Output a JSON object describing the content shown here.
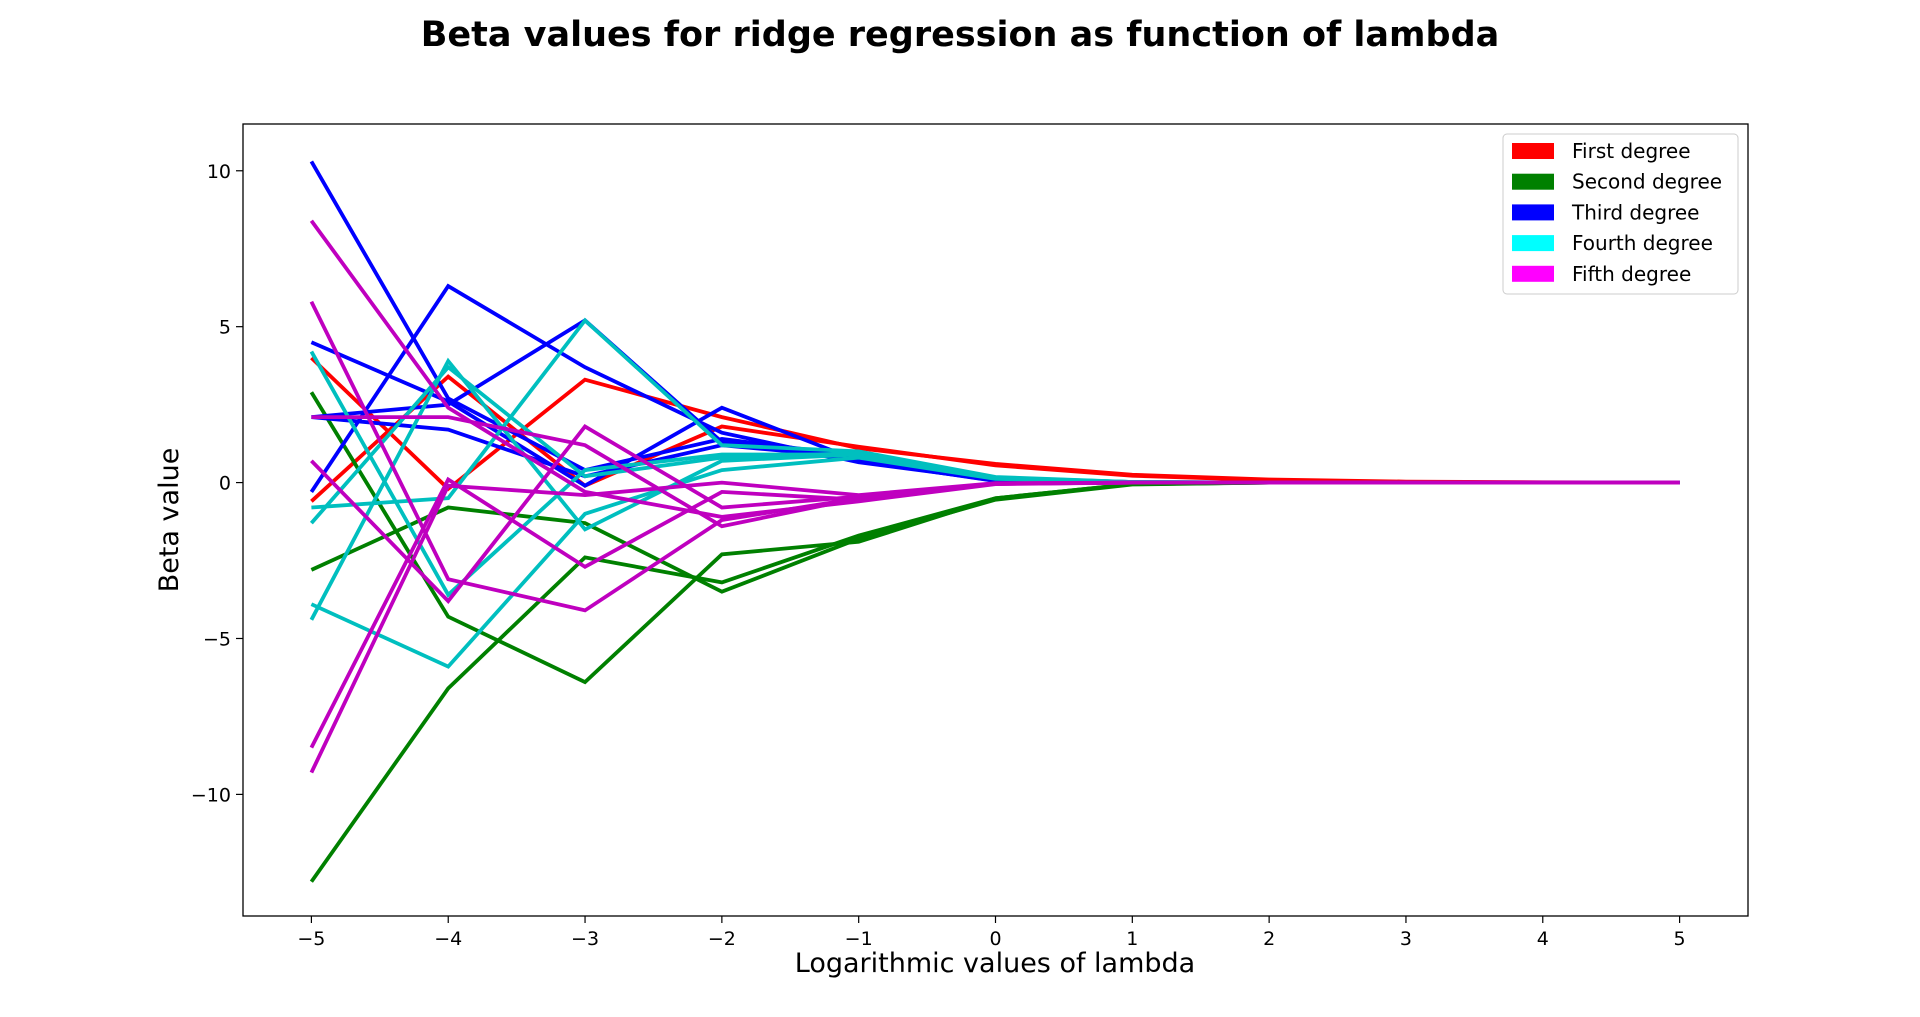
{
  "chart_data": {
    "type": "line",
    "title": "Beta values for ridge regression as function of lambda",
    "xlabel": "Logarithmic values of lambda",
    "ylabel": "Beta value",
    "x": [
      -5,
      -4,
      -3,
      -2,
      -1,
      0,
      1,
      2,
      3,
      4,
      5
    ],
    "xticks": [
      -5,
      -4,
      -3,
      -2,
      -1,
      0,
      1,
      2,
      3,
      4,
      5
    ],
    "xtick_labels": [
      "−5",
      "−4",
      "−3",
      "−2",
      "−1",
      "0",
      "1",
      "2",
      "3",
      "4",
      "5"
    ],
    "yticks": [
      10,
      5,
      0,
      -5,
      -10
    ],
    "ytick_labels": [
      "10",
      "5",
      "0",
      "−5",
      "−10"
    ],
    "xlim": [
      -5.5,
      5.5
    ],
    "ylim": [
      -13.9,
      11.5
    ],
    "grid": false,
    "legend_position": "top-right",
    "legend": [
      {
        "label": "First degree",
        "color": "#ff0000"
      },
      {
        "label": "Second degree",
        "color": "#008000"
      },
      {
        "label": "Third degree",
        "color": "#0000ff"
      },
      {
        "label": "Fourth degree",
        "color": "#00ffff"
      },
      {
        "label": "Fifth degree",
        "color": "#ff00ff"
      }
    ],
    "series": [
      {
        "group": "First degree",
        "color": "#ff0000",
        "values": [
          4.0,
          -0.2,
          3.3,
          2.1,
          1.1,
          0.6,
          0.25,
          0.1,
          0.03,
          0.01,
          0.0
        ]
      },
      {
        "group": "First degree",
        "color": "#ff0000",
        "values": [
          -0.6,
          3.4,
          -0.1,
          1.8,
          1.15,
          0.55,
          0.22,
          0.08,
          0.02,
          0.0,
          0.0
        ]
      },
      {
        "group": "Second degree",
        "color": "#008000",
        "values": [
          2.9,
          -4.3,
          -6.4,
          -2.3,
          -1.9,
          -0.5,
          -0.05,
          0.0,
          0.0,
          0.0,
          0.0
        ]
      },
      {
        "group": "Second degree",
        "color": "#008000",
        "values": [
          -2.8,
          -0.8,
          -1.3,
          -3.5,
          -1.8,
          -0.55,
          -0.06,
          0.0,
          0.0,
          0.0,
          0.0
        ]
      },
      {
        "group": "Second degree",
        "color": "#008000",
        "values": [
          -12.8,
          -6.6,
          -2.4,
          -3.2,
          -1.7,
          -0.5,
          -0.05,
          0.0,
          0.0,
          0.0,
          0.0
        ]
      },
      {
        "group": "Third degree",
        "color": "#0000ff",
        "values": [
          10.3,
          2.7,
          0.4,
          1.4,
          0.85,
          0.1,
          0.0,
          0.0,
          0.0,
          0.0,
          0.0
        ]
      },
      {
        "group": "Third degree",
        "color": "#0000ff",
        "values": [
          4.5,
          2.6,
          -0.1,
          2.4,
          0.7,
          0.05,
          0.0,
          0.0,
          0.0,
          0.0,
          0.0
        ]
      },
      {
        "group": "Third degree",
        "color": "#0000ff",
        "values": [
          -0.3,
          6.3,
          3.7,
          1.6,
          0.65,
          0.08,
          0.0,
          0.0,
          0.0,
          0.0,
          0.0
        ]
      },
      {
        "group": "Third degree",
        "color": "#0000ff",
        "values": [
          2.1,
          2.5,
          5.2,
          1.3,
          0.7,
          0.06,
          0.0,
          0.0,
          0.0,
          0.0,
          0.0
        ]
      },
      {
        "group": "Third degree",
        "color": "#0000ff",
        "values": [
          2.1,
          1.7,
          0.2,
          1.2,
          0.8,
          0.07,
          0.0,
          0.0,
          0.0,
          0.0,
          0.0
        ]
      },
      {
        "group": "Fourth degree",
        "color": "#00bfbf",
        "values": [
          4.2,
          -3.6,
          0.4,
          0.9,
          0.9,
          0.15,
          0.02,
          0.0,
          0.0,
          0.0,
          0.0
        ]
      },
      {
        "group": "Fourth degree",
        "color": "#00bfbf",
        "values": [
          -0.8,
          -0.5,
          5.2,
          1.2,
          1.0,
          0.18,
          0.02,
          0.0,
          0.0,
          0.0,
          0.0
        ]
      },
      {
        "group": "Fourth degree",
        "color": "#00bfbf",
        "values": [
          -3.9,
          -5.9,
          -1.0,
          0.4,
          0.8,
          0.12,
          0.01,
          0.0,
          0.0,
          0.0,
          0.0
        ]
      },
      {
        "group": "Fourth degree",
        "color": "#00bfbf",
        "values": [
          -4.4,
          3.9,
          -1.5,
          0.7,
          0.9,
          0.14,
          0.02,
          0.0,
          0.0,
          0.0,
          0.0
        ]
      },
      {
        "group": "Fourth degree",
        "color": "#00bfbf",
        "values": [
          -1.3,
          3.7,
          0.2,
          0.8,
          0.95,
          0.16,
          0.02,
          0.0,
          0.0,
          0.0,
          0.0
        ]
      },
      {
        "group": "Fifth degree",
        "color": "#bf00bf",
        "values": [
          8.4,
          2.4,
          -0.3,
          -1.1,
          -0.6,
          -0.05,
          0.0,
          0.0,
          0.0,
          0.0,
          0.0
        ]
      },
      {
        "group": "Fifth degree",
        "color": "#bf00bf",
        "values": [
          5.8,
          -3.1,
          -4.1,
          -1.2,
          -0.5,
          -0.04,
          0.0,
          0.0,
          0.0,
          0.0,
          0.0
        ]
      },
      {
        "group": "Fifth degree",
        "color": "#bf00bf",
        "values": [
          0.7,
          -3.8,
          1.8,
          -0.8,
          -0.45,
          -0.03,
          0.0,
          0.0,
          0.0,
          0.0,
          0.0
        ]
      },
      {
        "group": "Fifth degree",
        "color": "#bf00bf",
        "values": [
          -8.5,
          0.1,
          -2.7,
          -0.3,
          -0.55,
          -0.04,
          0.0,
          0.0,
          0.0,
          0.0,
          0.0
        ]
      },
      {
        "group": "Fifth degree",
        "color": "#bf00bf",
        "values": [
          2.1,
          2.1,
          1.2,
          -1.4,
          -0.5,
          -0.03,
          0.0,
          0.0,
          0.0,
          0.0,
          0.0
        ]
      },
      {
        "group": "Fifth degree",
        "color": "#bf00bf",
        "values": [
          -9.3,
          -0.1,
          -0.4,
          0.0,
          -0.4,
          -0.02,
          0.0,
          0.0,
          0.0,
          0.0,
          0.0
        ]
      }
    ]
  }
}
